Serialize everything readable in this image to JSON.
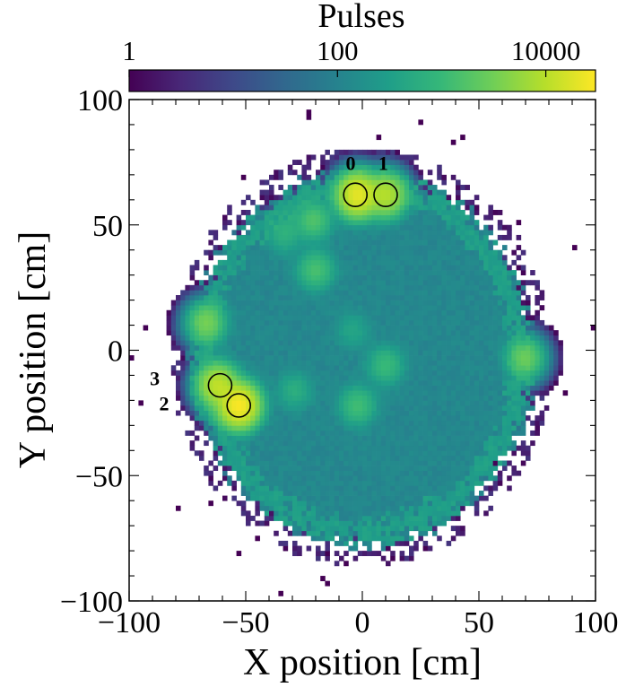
{
  "chart_data": {
    "type": "heatmap",
    "title": "",
    "xlabel": "X position [cm]",
    "ylabel": "Y position [cm]",
    "xlim": [
      -100,
      100
    ],
    "ylim": [
      -100,
      100
    ],
    "x_ticks": [
      -100,
      -50,
      0,
      50,
      100
    ],
    "y_ticks": [
      -100,
      -50,
      0,
      50,
      100
    ],
    "x_tick_labels": [
      "−100",
      "−50",
      "0",
      "50",
      "100"
    ],
    "y_tick_labels": [
      "−100",
      "−50",
      "0",
      "50",
      "100"
    ],
    "colorbar": {
      "label": "Pulses",
      "scale": "log",
      "range": [
        1,
        30000
      ],
      "ticks": [
        1,
        100,
        10000
      ],
      "tick_labels": [
        "1",
        "100",
        "10000"
      ],
      "colormap": [
        "#440154",
        "#482878",
        "#3e4989",
        "#31688e",
        "#26828e",
        "#1f9e89",
        "#35b779",
        "#6ece58",
        "#b5de2b",
        "#fde725"
      ],
      "position": "top"
    },
    "disc": {
      "center": [
        0,
        -3
      ],
      "radius": 73,
      "interior_level": 120,
      "rim_level": 320,
      "rim_width": 9
    },
    "hot_spots": [
      {
        "x": -2,
        "y": 62,
        "peak": 20000
      },
      {
        "x": 10,
        "y": 62,
        "peak": 9000
      },
      {
        "x": -62,
        "y": -14,
        "peak": 11000
      },
      {
        "x": -53,
        "y": -22,
        "peak": 28000
      },
      {
        "x": -67,
        "y": 11,
        "peak": 3000
      },
      {
        "x": 70,
        "y": -3,
        "peak": 2500
      },
      {
        "x": -21,
        "y": 52,
        "peak": 1500
      },
      {
        "x": -20,
        "y": 32,
        "peak": 1300
      },
      {
        "x": 10,
        "y": -6,
        "peak": 900
      },
      {
        "x": -2,
        "y": -22,
        "peak": 1100
      },
      {
        "x": -29,
        "y": -16,
        "peak": 500
      },
      {
        "x": -33,
        "y": 48,
        "peak": 400
      },
      {
        "x": -34,
        "y": 45,
        "peak": 250
      },
      {
        "x": -4,
        "y": 8,
        "peak": 300
      }
    ],
    "annotations": [
      {
        "label": "0",
        "x": -5,
        "y": 72
      },
      {
        "label": "1",
        "x": 9,
        "y": 72
      },
      {
        "label": "3",
        "x": -89,
        "y": -14
      },
      {
        "label": "2",
        "x": -85,
        "y": -24
      }
    ],
    "circled_pmts": [
      {
        "id": "0",
        "x": -3,
        "y": 62
      },
      {
        "id": "1",
        "x": 10,
        "y": 62
      },
      {
        "id": "3",
        "x": -61,
        "y": -14
      },
      {
        "id": "2",
        "x": -53,
        "y": -22
      }
    ]
  }
}
